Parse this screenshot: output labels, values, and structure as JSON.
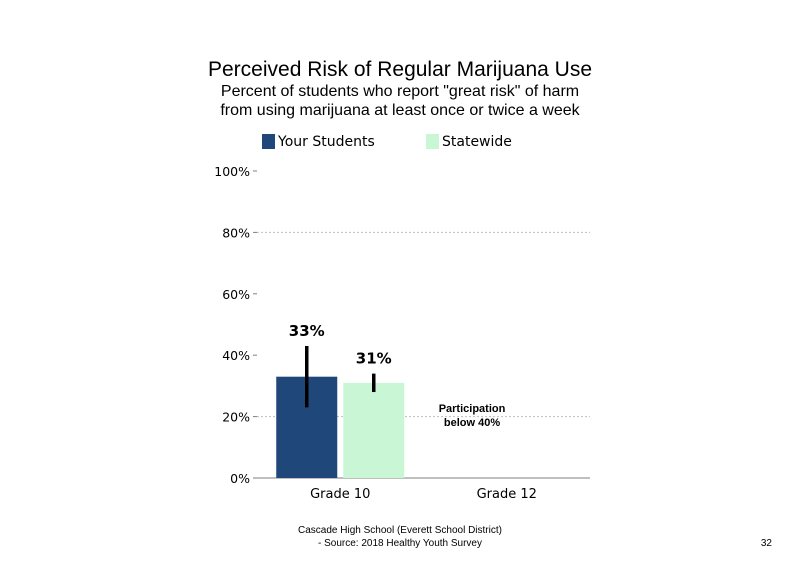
{
  "title": "Perceived Risk of Regular Marijuana Use",
  "subtitle_line1": "Percent of students  who report \"great risk\" of harm",
  "subtitle_line2": "from using marijuana at least once or twice a week",
  "footer_line1": "Cascade High School (Everett School District)",
  "footer_line2": "- Source: 2018 Healthy  Youth Survey",
  "page_number": "32",
  "colors": {
    "your_students": "#1f477a",
    "statewide": "#c9f7d6",
    "gridline": "#bfbfbf",
    "axis": "#7f7f7f"
  },
  "chart_data": {
    "type": "bar",
    "categories": [
      "Grade 10",
      "Grade 12"
    ],
    "series": [
      {
        "name": "Your Students",
        "values": [
          33,
          null
        ],
        "error": [
          [
            23,
            43
          ],
          null
        ],
        "labels": [
          "33%",
          null
        ]
      },
      {
        "name": "Statewide",
        "values": [
          31,
          null
        ],
        "error": [
          [
            28,
            34
          ],
          null
        ],
        "labels": [
          "31%",
          null
        ]
      }
    ],
    "ylim": [
      0,
      100
    ],
    "yticks": [
      "0%",
      "20%",
      "40%",
      "60%",
      "80%",
      "100%"
    ],
    "ytick_values": [
      0,
      20,
      40,
      60,
      80,
      100
    ],
    "gridlines": [
      20,
      80
    ],
    "legend_position": "top",
    "annotation": {
      "line1": "Participation",
      "line2": "below 40%"
    }
  }
}
